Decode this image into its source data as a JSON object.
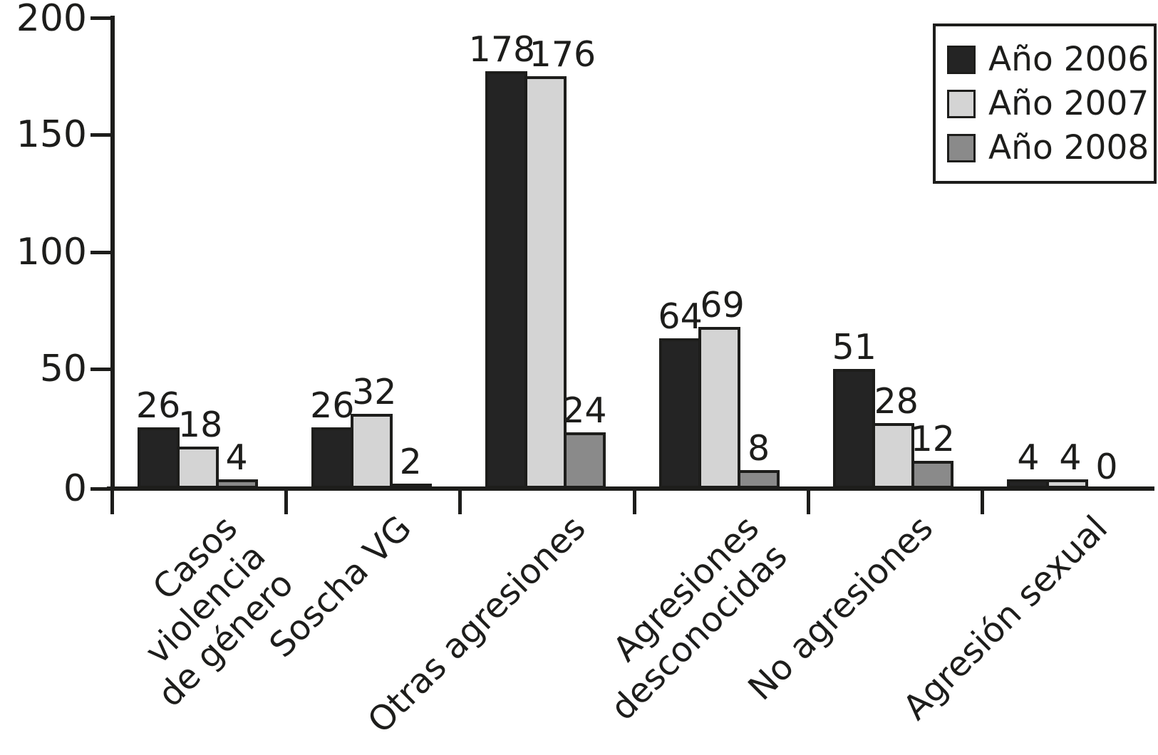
{
  "chart_data": {
    "type": "bar",
    "categories": [
      "Casos violencia\nde género",
      "Soscha VG",
      "Otras agresiones",
      "Agresiones\ndesconocidas",
      "No agresiones",
      "Agresión sexual"
    ],
    "series": [
      {
        "name": "Año 2006",
        "color": "#242424",
        "values": [
          26,
          26,
          178,
          64,
          51,
          4
        ]
      },
      {
        "name": "Año 2007",
        "color": "#d4d4d4",
        "values": [
          18,
          32,
          176,
          69,
          28,
          4
        ]
      },
      {
        "name": "Año 2008",
        "color": "#8a8a8a",
        "values": [
          4,
          2,
          24,
          8,
          12,
          0
        ]
      }
    ],
    "bar_value_labels": true,
    "ylim": [
      0,
      200
    ],
    "yticks": [
      0,
      50,
      100,
      150,
      200
    ],
    "grid": false,
    "legend_position": "top-right",
    "axis_color": "#1d1d1b",
    "background_color": "#ffffff"
  }
}
